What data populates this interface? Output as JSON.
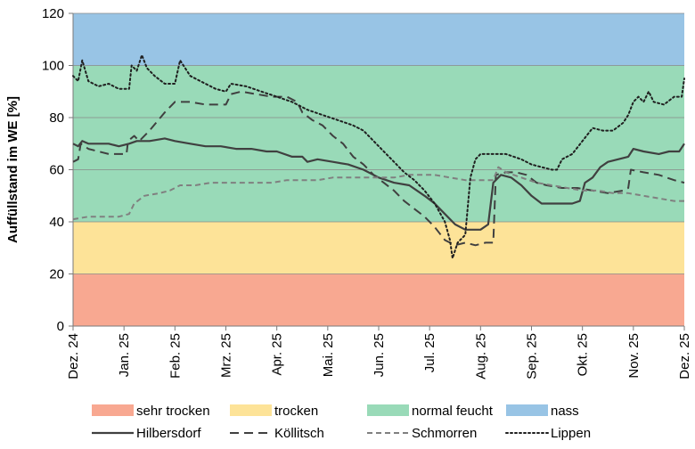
{
  "chart_data": {
    "type": "line",
    "title": "",
    "ylabel": "Auffüllstand im WE [%]",
    "xlabel": "",
    "ylim": [
      0,
      120
    ],
    "yticks": [
      0,
      20,
      40,
      60,
      80,
      100,
      120
    ],
    "x_categories": [
      "Dez. 24",
      "Jan. 25",
      "Feb. 25",
      "Mrz. 25",
      "Apr. 25",
      "Mai. 25",
      "Jun. 25",
      "Jul. 25",
      "Aug. 25",
      "Sep. 25",
      "Okt. 25",
      "Nov. 25",
      "Dez. 25"
    ],
    "x_range_months": [
      0,
      12
    ],
    "bands": [
      {
        "name": "sehr trocken",
        "from": 0,
        "to": 20,
        "color": "#f8a891"
      },
      {
        "name": "trocken",
        "from": 20,
        "to": 40,
        "color": "#fde398"
      },
      {
        "name": "normal feucht",
        "from": 40,
        "to": 100,
        "color": "#99dab8"
      },
      {
        "name": "nass",
        "from": 100,
        "to": 120,
        "color": "#98c4e5"
      }
    ],
    "series": [
      {
        "name": "Hilbersdorf",
        "style": "solid",
        "color": "#404040",
        "points": [
          [
            0,
            70
          ],
          [
            0.1,
            69
          ],
          [
            0.18,
            71
          ],
          [
            0.3,
            70
          ],
          [
            0.5,
            70
          ],
          [
            0.7,
            70
          ],
          [
            0.9,
            69
          ],
          [
            1.1,
            70
          ],
          [
            1.25,
            71
          ],
          [
            1.5,
            71
          ],
          [
            1.8,
            72
          ],
          [
            2.0,
            71
          ],
          [
            2.3,
            70
          ],
          [
            2.6,
            69
          ],
          [
            2.9,
            69
          ],
          [
            3.2,
            68
          ],
          [
            3.5,
            68
          ],
          [
            3.8,
            67
          ],
          [
            4.0,
            67
          ],
          [
            4.3,
            65
          ],
          [
            4.5,
            65
          ],
          [
            4.6,
            63
          ],
          [
            4.8,
            64
          ],
          [
            5.1,
            63
          ],
          [
            5.4,
            62
          ],
          [
            5.7,
            60
          ],
          [
            6.0,
            57
          ],
          [
            6.3,
            55
          ],
          [
            6.6,
            54
          ],
          [
            6.9,
            50
          ],
          [
            7.1,
            47
          ],
          [
            7.3,
            43
          ],
          [
            7.5,
            39
          ],
          [
            7.7,
            37
          ],
          [
            7.9,
            37
          ],
          [
            8.0,
            37
          ],
          [
            8.15,
            39
          ],
          [
            8.25,
            55
          ],
          [
            8.4,
            58
          ],
          [
            8.6,
            57
          ],
          [
            8.8,
            54
          ],
          [
            9.0,
            50
          ],
          [
            9.2,
            47
          ],
          [
            9.5,
            47
          ],
          [
            9.8,
            47
          ],
          [
            9.95,
            48
          ],
          [
            10.05,
            55
          ],
          [
            10.2,
            57
          ],
          [
            10.35,
            61
          ],
          [
            10.5,
            63
          ],
          [
            10.7,
            64
          ],
          [
            10.9,
            65
          ],
          [
            11.0,
            68
          ],
          [
            11.2,
            67
          ],
          [
            11.5,
            66
          ],
          [
            11.7,
            67
          ],
          [
            11.9,
            67
          ],
          [
            12.0,
            70
          ]
        ]
      },
      {
        "name": "Köllitsch",
        "style": "dashed",
        "color": "#404040",
        "points": [
          [
            0,
            63
          ],
          [
            0.1,
            64
          ],
          [
            0.15,
            70
          ],
          [
            0.3,
            68
          ],
          [
            0.5,
            67
          ],
          [
            0.7,
            66
          ],
          [
            0.9,
            66
          ],
          [
            1.05,
            66
          ],
          [
            1.08,
            71
          ],
          [
            1.2,
            73
          ],
          [
            1.3,
            71
          ],
          [
            1.5,
            75
          ],
          [
            1.8,
            82
          ],
          [
            2.0,
            86
          ],
          [
            2.3,
            86
          ],
          [
            2.6,
            85
          ],
          [
            2.9,
            85
          ],
          [
            3.0,
            85
          ],
          [
            3.1,
            89
          ],
          [
            3.3,
            90
          ],
          [
            3.6,
            89
          ],
          [
            3.9,
            88
          ],
          [
            4.2,
            88
          ],
          [
            4.4,
            86
          ],
          [
            4.5,
            82
          ],
          [
            4.7,
            79
          ],
          [
            4.9,
            77
          ],
          [
            5.1,
            73
          ],
          [
            5.3,
            70
          ],
          [
            5.5,
            65
          ],
          [
            5.7,
            62
          ],
          [
            5.9,
            58
          ],
          [
            6.1,
            55
          ],
          [
            6.3,
            52
          ],
          [
            6.5,
            48
          ],
          [
            6.7,
            45
          ],
          [
            6.9,
            42
          ],
          [
            7.1,
            38
          ],
          [
            7.3,
            33
          ],
          [
            7.5,
            31
          ],
          [
            7.7,
            32
          ],
          [
            7.9,
            31
          ],
          [
            8.1,
            32
          ],
          [
            8.25,
            32
          ],
          [
            8.3,
            58
          ],
          [
            8.5,
            59
          ],
          [
            8.7,
            59
          ],
          [
            8.9,
            58
          ],
          [
            9.1,
            55
          ],
          [
            9.3,
            54
          ],
          [
            9.6,
            53
          ],
          [
            9.9,
            53
          ],
          [
            10.2,
            52
          ],
          [
            10.5,
            51
          ],
          [
            10.8,
            52
          ],
          [
            10.9,
            53
          ],
          [
            10.95,
            60
          ],
          [
            11.2,
            59
          ],
          [
            11.5,
            58
          ],
          [
            11.8,
            56
          ],
          [
            12.0,
            55
          ]
        ]
      },
      {
        "name": "Schmorren",
        "style": "dashed-fine",
        "color": "#808080",
        "points": [
          [
            0,
            41
          ],
          [
            0.3,
            42
          ],
          [
            0.6,
            42
          ],
          [
            0.9,
            42
          ],
          [
            1.1,
            43
          ],
          [
            1.2,
            47
          ],
          [
            1.4,
            50
          ],
          [
            1.7,
            51
          ],
          [
            1.9,
            52
          ],
          [
            2.1,
            54
          ],
          [
            2.4,
            54
          ],
          [
            2.7,
            55
          ],
          [
            3.0,
            55
          ],
          [
            3.3,
            55
          ],
          [
            3.6,
            55
          ],
          [
            3.9,
            55
          ],
          [
            4.2,
            56
          ],
          [
            4.5,
            56
          ],
          [
            4.8,
            56
          ],
          [
            5.1,
            57
          ],
          [
            5.4,
            57
          ],
          [
            5.7,
            57
          ],
          [
            6.0,
            57
          ],
          [
            6.3,
            57
          ],
          [
            6.6,
            58
          ],
          [
            6.9,
            58
          ],
          [
            7.1,
            58
          ],
          [
            7.4,
            57
          ],
          [
            7.7,
            56
          ],
          [
            8.0,
            56
          ],
          [
            8.25,
            56
          ],
          [
            8.35,
            61
          ],
          [
            8.5,
            59
          ],
          [
            8.8,
            57
          ],
          [
            9.1,
            55
          ],
          [
            9.4,
            54
          ],
          [
            9.7,
            53
          ],
          [
            10.0,
            52
          ],
          [
            10.3,
            52
          ],
          [
            10.6,
            51
          ],
          [
            10.9,
            51
          ],
          [
            11.2,
            50
          ],
          [
            11.5,
            49
          ],
          [
            11.8,
            48
          ],
          [
            12.0,
            48
          ]
        ]
      },
      {
        "name": "Lippen",
        "style": "dotted",
        "color": "#202020",
        "points": [
          [
            0,
            96
          ],
          [
            0.1,
            94
          ],
          [
            0.18,
            102
          ],
          [
            0.3,
            94
          ],
          [
            0.5,
            92
          ],
          [
            0.7,
            93
          ],
          [
            0.9,
            91
          ],
          [
            1.1,
            91
          ],
          [
            1.15,
            100
          ],
          [
            1.25,
            98
          ],
          [
            1.35,
            104
          ],
          [
            1.45,
            99
          ],
          [
            1.6,
            96
          ],
          [
            1.8,
            93
          ],
          [
            2.0,
            93
          ],
          [
            2.1,
            102
          ],
          [
            2.3,
            96
          ],
          [
            2.5,
            94
          ],
          [
            2.8,
            91
          ],
          [
            3.0,
            90
          ],
          [
            3.1,
            93
          ],
          [
            3.4,
            92
          ],
          [
            3.7,
            90
          ],
          [
            4.0,
            88
          ],
          [
            4.3,
            86
          ],
          [
            4.6,
            83
          ],
          [
            4.9,
            81
          ],
          [
            5.2,
            79
          ],
          [
            5.5,
            77
          ],
          [
            5.7,
            75
          ],
          [
            5.9,
            71
          ],
          [
            6.1,
            67
          ],
          [
            6.3,
            63
          ],
          [
            6.5,
            59
          ],
          [
            6.7,
            56
          ],
          [
            6.9,
            52
          ],
          [
            7.1,
            47
          ],
          [
            7.3,
            40
          ],
          [
            7.4,
            33
          ],
          [
            7.45,
            26
          ],
          [
            7.55,
            32
          ],
          [
            7.7,
            35
          ],
          [
            7.8,
            57
          ],
          [
            7.9,
            64
          ],
          [
            8.0,
            66
          ],
          [
            8.2,
            66
          ],
          [
            8.5,
            66
          ],
          [
            8.8,
            64
          ],
          [
            9.0,
            62
          ],
          [
            9.2,
            61
          ],
          [
            9.4,
            60
          ],
          [
            9.5,
            60
          ],
          [
            9.6,
            64
          ],
          [
            9.8,
            66
          ],
          [
            10.0,
            71
          ],
          [
            10.2,
            76
          ],
          [
            10.4,
            75
          ],
          [
            10.6,
            75
          ],
          [
            10.8,
            78
          ],
          [
            10.9,
            81
          ],
          [
            11.0,
            86
          ],
          [
            11.1,
            88
          ],
          [
            11.2,
            86
          ],
          [
            11.3,
            90
          ],
          [
            11.4,
            86
          ],
          [
            11.6,
            85
          ],
          [
            11.8,
            88
          ],
          [
            11.95,
            88
          ],
          [
            12.0,
            95
          ]
        ]
      }
    ],
    "legend": {
      "placement": "bottom",
      "rows": [
        [
          {
            "label": "sehr trocken",
            "kind": "patch",
            "color": "#f8a891"
          },
          {
            "label": "trocken",
            "kind": "patch",
            "color": "#fde398"
          },
          {
            "label": "normal feucht",
            "kind": "patch",
            "color": "#99dab8"
          },
          {
            "label": "nass",
            "kind": "patch",
            "color": "#98c4e5"
          }
        ],
        [
          {
            "label": "Hilbersdorf",
            "kind": "line",
            "style": "solid",
            "color": "#404040"
          },
          {
            "label": "Köllitsch",
            "kind": "line",
            "style": "dashed",
            "color": "#404040"
          },
          {
            "label": "Schmorren",
            "kind": "line",
            "style": "dashed-fine",
            "color": "#808080"
          },
          {
            "label": "Lippen",
            "kind": "line",
            "style": "dotted",
            "color": "#202020"
          }
        ]
      ]
    }
  }
}
